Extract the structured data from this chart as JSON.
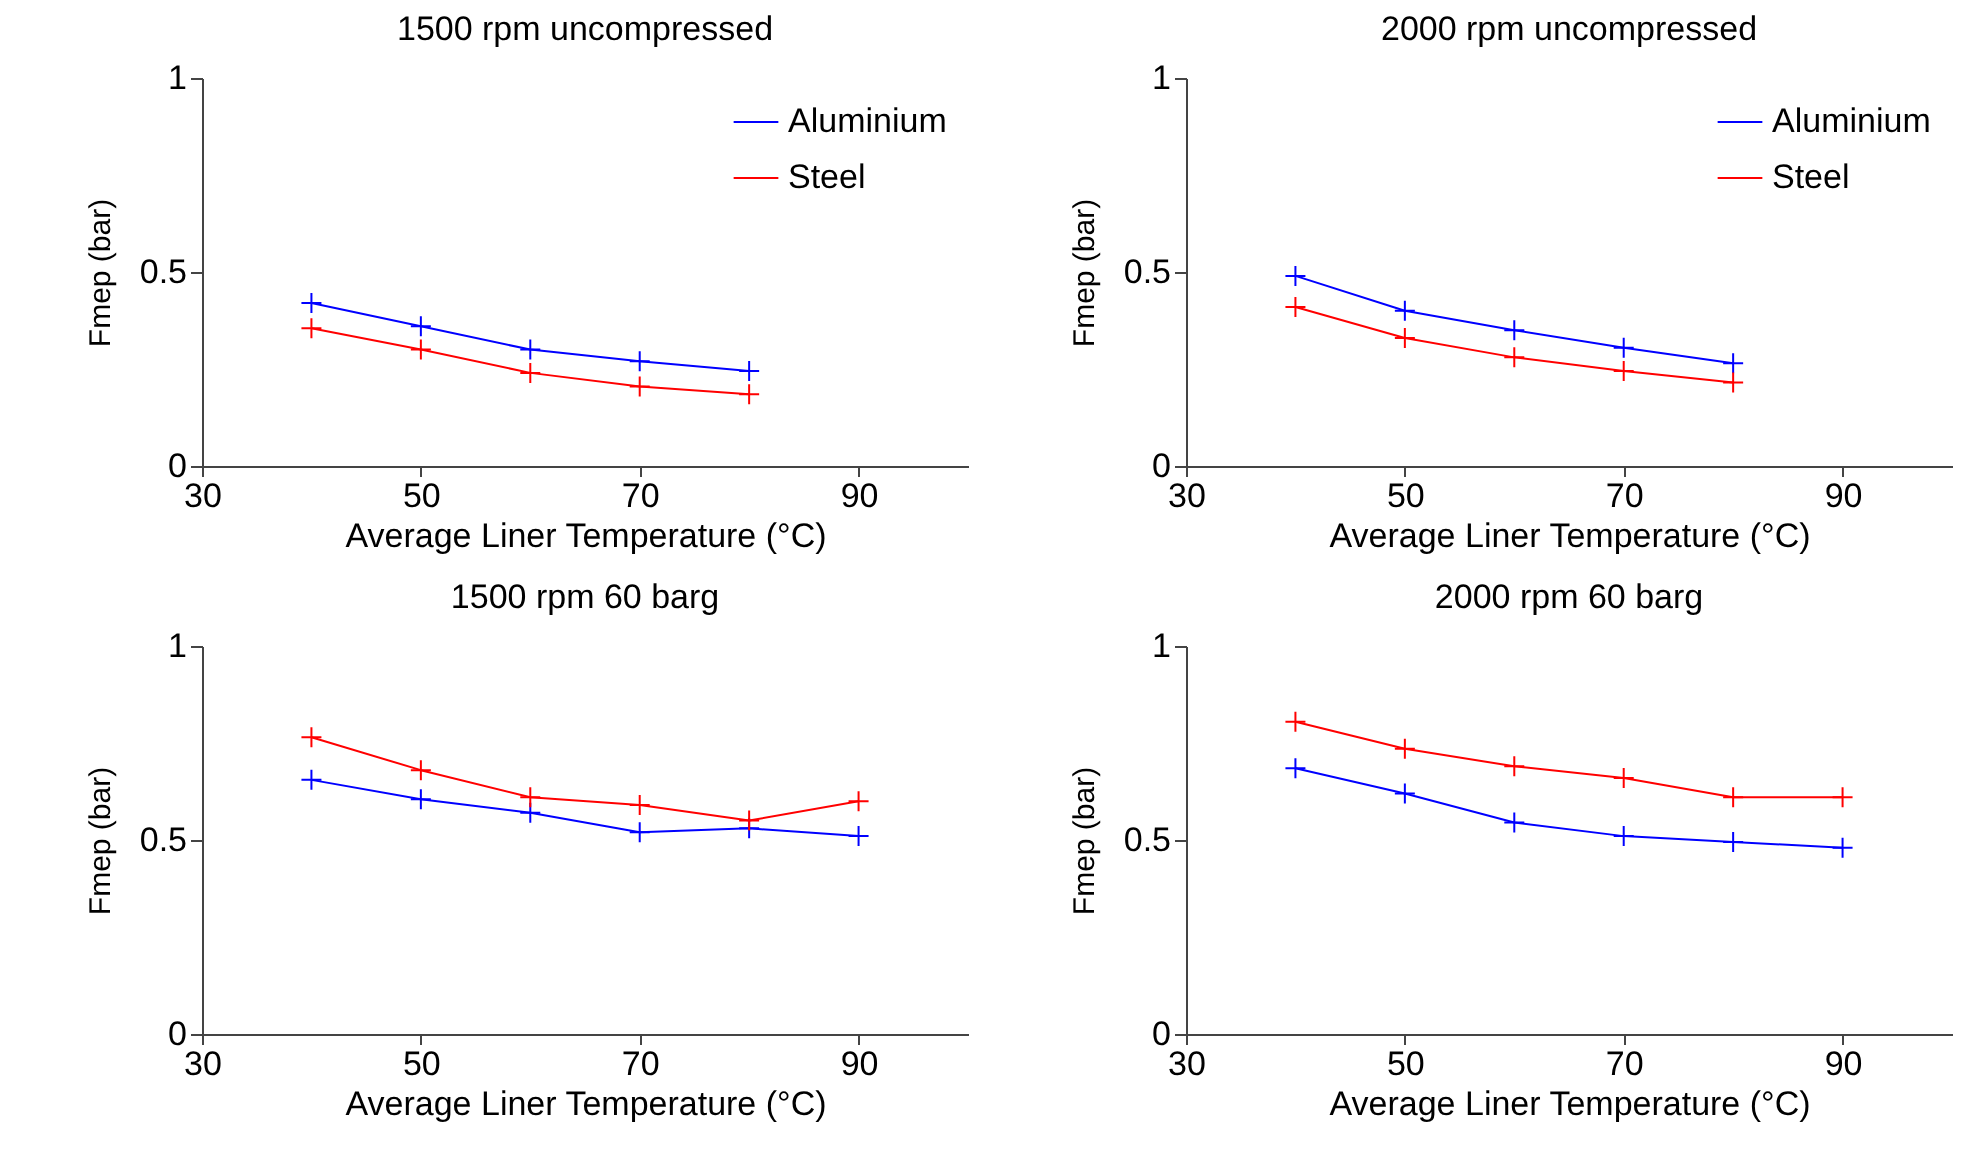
{
  "chart_data": [
    {
      "type": "line",
      "title": "1500 rpm uncompressed",
      "xlabel": "Average Liner Temperature (°C)",
      "ylabel": "Fmep (bar)",
      "x": [
        40,
        50,
        60,
        70,
        80
      ],
      "xlim": [
        30,
        100
      ],
      "xticks": [
        30,
        50,
        70,
        90
      ],
      "ylim": [
        0,
        1
      ],
      "yticks": [
        0,
        0.5,
        1
      ],
      "legend": "top right",
      "marker": "cross",
      "series": [
        {
          "name": "Aluminium",
          "color": "#0000ff",
          "values": [
            0.42,
            0.36,
            0.3,
            0.27,
            0.245
          ]
        },
        {
          "name": "Steel",
          "color": "#ff0000",
          "values": [
            0.355,
            0.3,
            0.24,
            0.205,
            0.185
          ]
        }
      ]
    },
    {
      "type": "line",
      "title": "2000 rpm uncompressed",
      "xlabel": "Average Liner Temperature (°C)",
      "ylabel": "Fmep (bar)",
      "x": [
        40,
        50,
        60,
        70,
        80
      ],
      "xlim": [
        30,
        100
      ],
      "xticks": [
        30,
        50,
        70,
        90
      ],
      "ylim": [
        0,
        1
      ],
      "yticks": [
        0,
        0.5,
        1
      ],
      "legend": "top right",
      "marker": "cross",
      "series": [
        {
          "name": "Aluminium",
          "color": "#0000ff",
          "values": [
            0.49,
            0.4,
            0.35,
            0.305,
            0.265
          ]
        },
        {
          "name": "Steel",
          "color": "#ff0000",
          "values": [
            0.41,
            0.33,
            0.28,
            0.245,
            0.215
          ]
        }
      ]
    },
    {
      "type": "line",
      "title": "1500 rpm 60 barg",
      "xlabel": "Average Liner Temperature (°C)",
      "ylabel": "Fmep (bar)",
      "x": [
        40,
        50,
        60,
        70,
        80,
        90
      ],
      "xlim": [
        30,
        100
      ],
      "xticks": [
        30,
        50,
        70,
        90
      ],
      "ylim": [
        0,
        1
      ],
      "yticks": [
        0,
        0.5,
        1
      ],
      "marker": "cross",
      "series": [
        {
          "color": "#0000ff",
          "values": [
            0.655,
            0.605,
            0.57,
            0.52,
            0.53,
            0.51
          ]
        },
        {
          "color": "#ff0000",
          "values": [
            0.765,
            0.68,
            0.61,
            0.59,
            0.55,
            0.6
          ]
        }
      ]
    },
    {
      "type": "line",
      "title": "2000 rpm 60 barg",
      "xlabel": "Average Liner Temperature (°C)",
      "ylabel": "Fmep (bar)",
      "x": [
        40,
        50,
        60,
        70,
        80,
        90
      ],
      "xlim": [
        30,
        100
      ],
      "xticks": [
        30,
        50,
        70,
        90
      ],
      "ylim": [
        0,
        1
      ],
      "yticks": [
        0,
        0.5,
        1
      ],
      "marker": "cross",
      "series": [
        {
          "color": "#0000ff",
          "values": [
            0.685,
            0.62,
            0.545,
            0.51,
            0.495,
            0.48
          ]
        },
        {
          "color": "#ff0000",
          "values": [
            0.805,
            0.735,
            0.69,
            0.66,
            0.61,
            0.61
          ]
        }
      ]
    }
  ]
}
